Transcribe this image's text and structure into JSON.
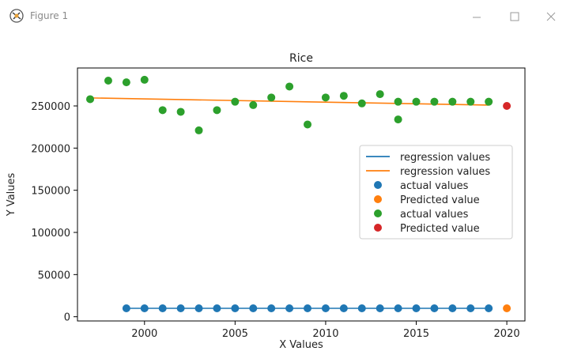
{
  "window": {
    "title": "Figure 1",
    "icons": {
      "app": "figure-app-icon",
      "minimize": "minimize-icon",
      "maximize": "maximize-icon",
      "close": "close-icon"
    }
  },
  "chart_data": {
    "type": "scatter",
    "title": "Rice",
    "xlabel": "X Values",
    "ylabel": "Y Values",
    "xlim": [
      1996.3,
      2021.0
    ],
    "ylim": [
      -5000,
      295000
    ],
    "xticks": [
      2000,
      2005,
      2010,
      2015,
      2020
    ],
    "yticks": [
      0,
      50000,
      100000,
      150000,
      200000,
      250000
    ],
    "grid": false,
    "legend_position": "center-right",
    "series": [
      {
        "name": "regression values",
        "kind": "line",
        "color": "#1f77b4",
        "x": [
          1999,
          2019
        ],
        "y": [
          10000,
          10000
        ]
      },
      {
        "name": "regression values",
        "kind": "line",
        "color": "#ff7f0e",
        "x": [
          1997,
          2019
        ],
        "y": [
          259500,
          251000
        ]
      },
      {
        "name": "actual values",
        "kind": "scatter",
        "color": "#1f77b4",
        "x": [
          1999,
          2000,
          2001,
          2002,
          2003,
          2004,
          2005,
          2006,
          2007,
          2008,
          2009,
          2010,
          2011,
          2012,
          2013,
          2014,
          2015,
          2016,
          2017,
          2018,
          2019
        ],
        "y": [
          10000,
          10000,
          10000,
          10000,
          10000,
          10000,
          10000,
          10000,
          10000,
          10000,
          10000,
          10000,
          10000,
          10000,
          10000,
          10000,
          10000,
          10000,
          10000,
          10000,
          10000
        ]
      },
      {
        "name": "Predicted value",
        "kind": "scatter",
        "color": "#ff7f0e",
        "x": [
          2020
        ],
        "y": [
          10000
        ]
      },
      {
        "name": "actual values",
        "kind": "scatter",
        "color": "#2ca02c",
        "x": [
          1997,
          1998,
          1999,
          2000,
          2001,
          2002,
          2003,
          2004,
          2005,
          2006,
          2007,
          2008,
          2009,
          2010,
          2011,
          2012,
          2013,
          2014,
          2014,
          2015,
          2016,
          2017,
          2018,
          2019
        ],
        "y": [
          258000,
          280000,
          278000,
          281000,
          245000,
          243000,
          221000,
          245000,
          255000,
          251000,
          260000,
          273000,
          228000,
          260000,
          262000,
          253000,
          264000,
          255000,
          234000,
          255000,
          255000,
          255000,
          255000,
          255000
        ]
      },
      {
        "name": "Predicted value",
        "kind": "scatter",
        "color": "#d62728",
        "x": [
          2020
        ],
        "y": [
          250000
        ]
      }
    ]
  }
}
